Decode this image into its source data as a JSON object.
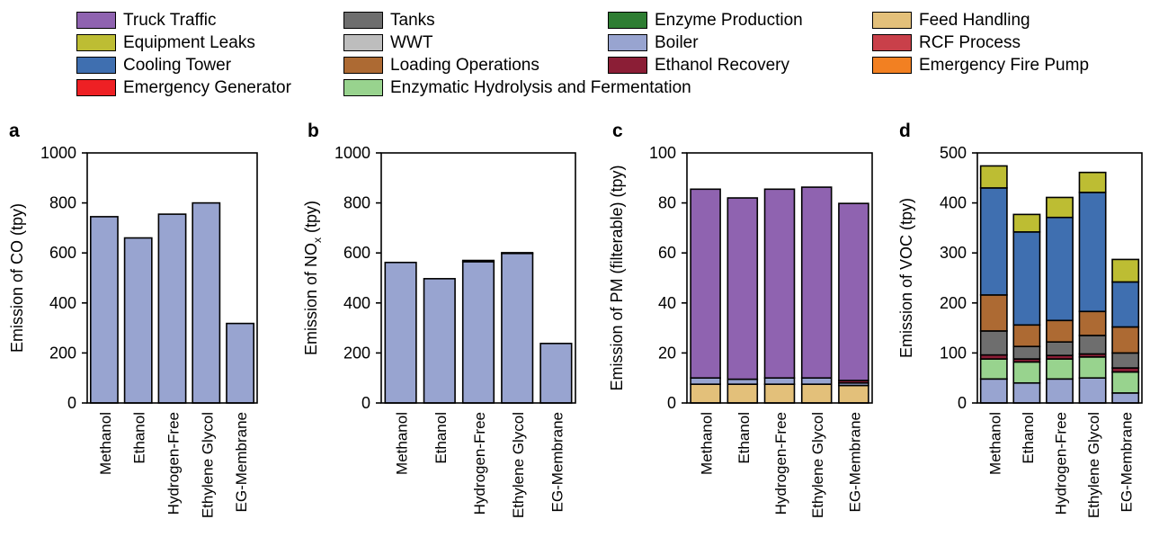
{
  "legend": [
    {
      "label": "Truck Traffic",
      "color": "#8f63b0"
    },
    {
      "label": "Tanks",
      "color": "#6e6e6e"
    },
    {
      "label": "Enzyme Production",
      "color": "#2e7d32"
    },
    {
      "label": "Feed Handling",
      "color": "#e3c07a"
    },
    {
      "label": "Equipment Leaks",
      "color": "#bdbd33"
    },
    {
      "label": "WWT",
      "color": "#bdbdbd"
    },
    {
      "label": "Boiler",
      "color": "#98a4d0"
    },
    {
      "label": "RCF Process",
      "color": "#c9404a"
    },
    {
      "label": "Cooling Tower",
      "color": "#3f6fb0"
    },
    {
      "label": "Loading Operations",
      "color": "#ad6a33"
    },
    {
      "label": "Ethanol Recovery",
      "color": "#8b1e36"
    },
    {
      "label": "Emergency Fire Pump",
      "color": "#f28022"
    },
    {
      "label": "Emergency Generator",
      "color": "#ee2024"
    },
    {
      "label": "Enzymatic Hydrolysis and Fermentation",
      "color": "#98d38e"
    }
  ],
  "chart_data": [
    {
      "panel": "a",
      "type": "bar",
      "ylabel": "Emission of CO (tpy)",
      "ylim": [
        0,
        1000
      ],
      "yticks": [
        "0",
        "200",
        "400",
        "600",
        "800",
        "1000"
      ],
      "categories": [
        "Methanol",
        "Ethanol",
        "Hydrogen-Free",
        "Ethylene Glycol",
        "EG-Membrane"
      ],
      "series": [
        {
          "name": "Boiler",
          "values": [
            745,
            660,
            755,
            800,
            318
          ]
        }
      ]
    },
    {
      "panel": "b",
      "type": "bar",
      "ylabel_main": "Emission of NO",
      "ylabel_sub": "x",
      "ylabel_tail": " (tpy)",
      "ylim": [
        0,
        1000
      ],
      "yticks": [
        "0",
        "200",
        "400",
        "600",
        "800",
        "1000"
      ],
      "categories": [
        "Methanol",
        "Ethanol",
        "Hydrogen-Free",
        "Ethylene Glycol",
        "EG-Membrane"
      ],
      "series": [
        {
          "name": "Boiler",
          "values": [
            562,
            497,
            565,
            598,
            238
          ]
        },
        {
          "name": "Ethanol Recovery",
          "values": [
            0,
            0,
            5,
            3,
            0
          ]
        }
      ]
    },
    {
      "panel": "c",
      "type": "bar",
      "ylabel": "Emission of PM (filterable) (tpy)",
      "ylim": [
        0,
        100
      ],
      "yticks": [
        "0",
        "20",
        "40",
        "60",
        "80",
        "100"
      ],
      "categories": [
        "Methanol",
        "Ethanol",
        "Hydrogen-Free",
        "Ethylene Glycol",
        "EG-Membrane"
      ],
      "series": [
        {
          "name": "Feed Handling",
          "values": [
            7.5,
            7.5,
            7.5,
            7.5,
            7.0
          ]
        },
        {
          "name": "Boiler",
          "values": [
            2.5,
            2.0,
            2.5,
            2.5,
            1.0
          ]
        },
        {
          "name": "Ethanol Recovery",
          "values": [
            0,
            0,
            0,
            0,
            1.0
          ]
        },
        {
          "name": "Truck Traffic",
          "values": [
            75.5,
            72.5,
            75.5,
            76.3,
            70.8
          ]
        }
      ]
    },
    {
      "panel": "d",
      "type": "bar",
      "ylabel": "Emission of  VOC (tpy)",
      "ylim": [
        0,
        500
      ],
      "yticks": [
        "0",
        "100",
        "200",
        "300",
        "400",
        "500"
      ],
      "categories": [
        "Methanol",
        "Ethanol",
        "Hydrogen-Free",
        "Ethylene Glycol",
        "EG-Membrane"
      ],
      "series": [
        {
          "name": "Boiler",
          "values": [
            48,
            40,
            48,
            50,
            20
          ]
        },
        {
          "name": "Enzymatic Hydrolysis and Fermentation",
          "values": [
            40,
            42,
            40,
            42,
            42
          ]
        },
        {
          "name": "Ethanol Recovery",
          "values": [
            8,
            6,
            7,
            6,
            8
          ]
        },
        {
          "name": "Tanks",
          "values": [
            48,
            25,
            27,
            37,
            30
          ]
        },
        {
          "name": "Loading Operations",
          "values": [
            72,
            43,
            43,
            48,
            52
          ]
        },
        {
          "name": "Cooling Tower",
          "values": [
            214,
            186,
            206,
            238,
            90
          ]
        },
        {
          "name": "Equipment Leaks",
          "values": [
            44,
            35,
            40,
            40,
            45
          ]
        }
      ]
    }
  ]
}
